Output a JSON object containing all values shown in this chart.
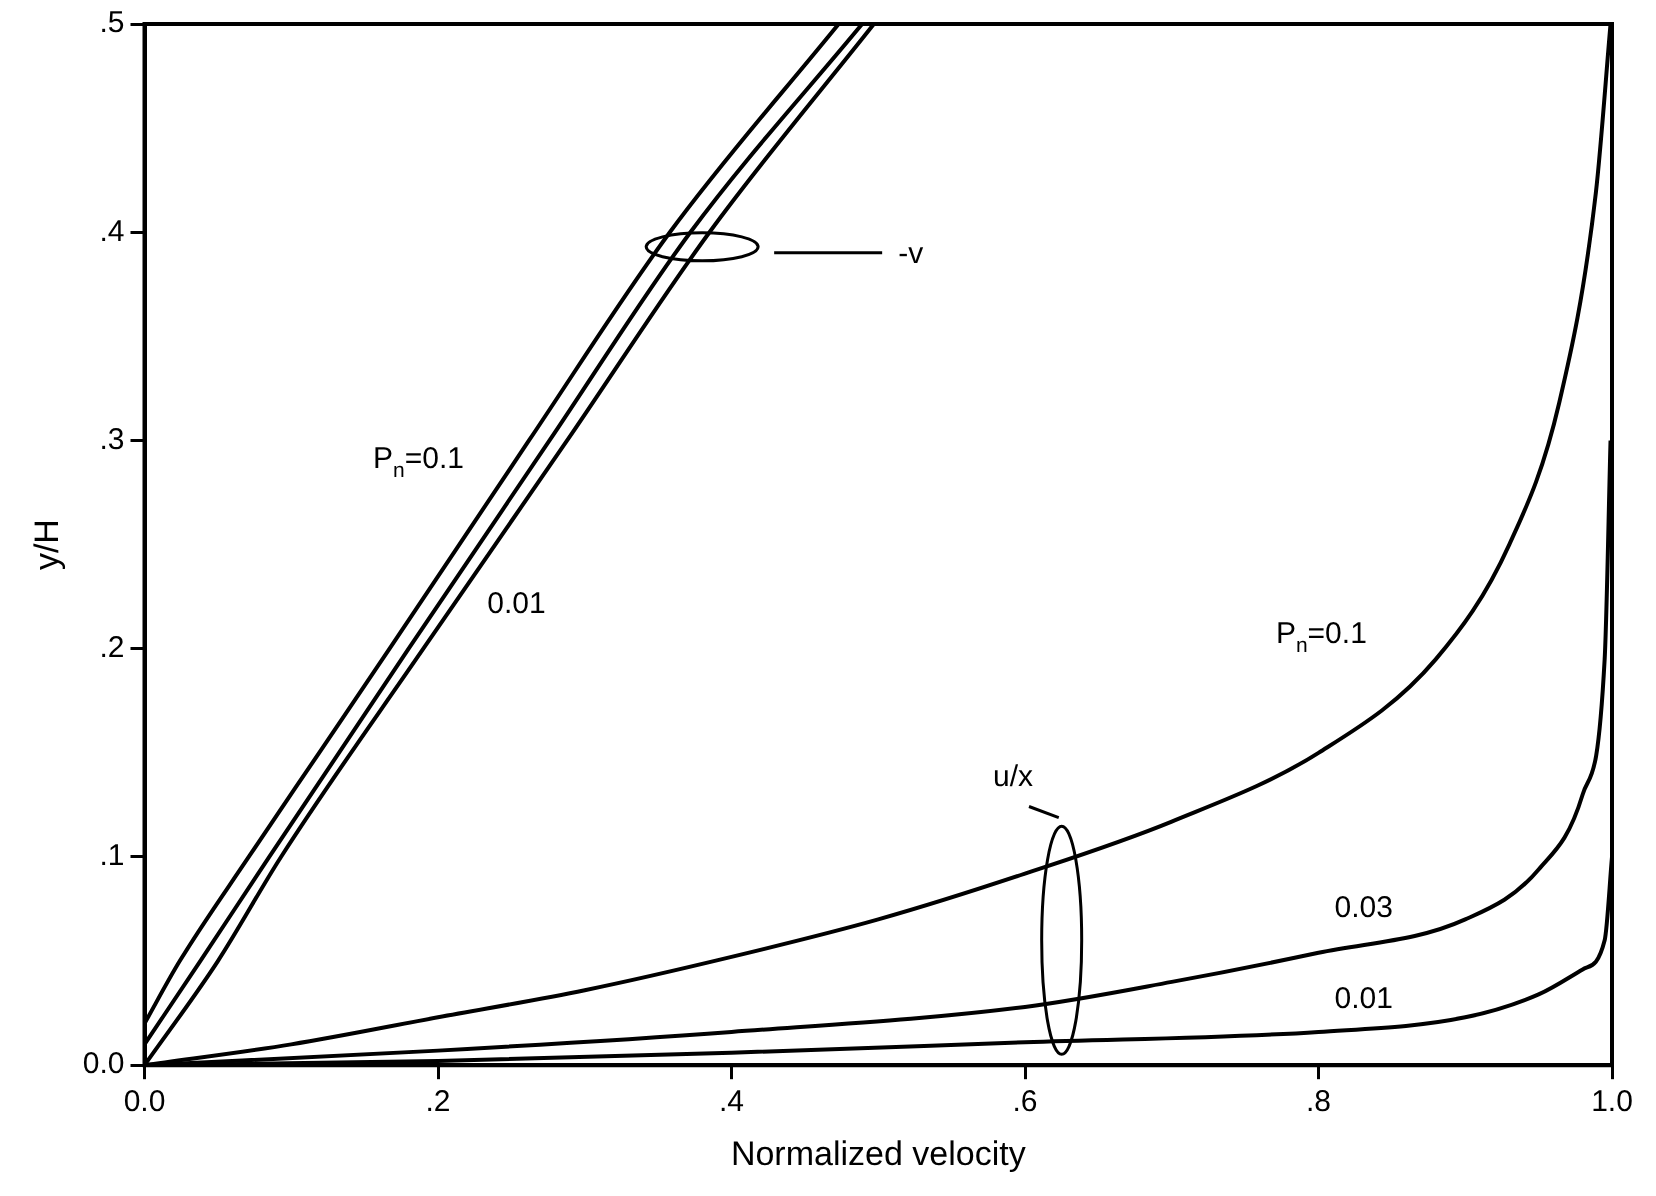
{
  "chart_data": {
    "type": "line",
    "xlabel": "Normalized velocity",
    "ylabel": "y/H",
    "xlim": [
      0,
      1
    ],
    "ylim": [
      0,
      0.5
    ],
    "xticks": [
      {
        "value": 0,
        "label": "0.0"
      },
      {
        "value": 0.2,
        "label": ".2"
      },
      {
        "value": 0.4,
        "label": ".4"
      },
      {
        "value": 0.6,
        "label": ".6"
      },
      {
        "value": 0.8,
        "label": ".8"
      },
      {
        "value": 1,
        "label": "1.0"
      }
    ],
    "yticks": [
      {
        "value": 0,
        "label": "0.0"
      },
      {
        "value": 0.1,
        "label": ".1"
      },
      {
        "value": 0.2,
        "label": ".2"
      },
      {
        "value": 0.3,
        "label": ".3"
      },
      {
        "value": 0.4,
        "label": ".4"
      },
      {
        "value": 0.5,
        "label": ".5"
      }
    ],
    "grid": false,
    "legend": false,
    "marker": "none",
    "line_style": "solid",
    "series": [
      {
        "name": "P$_{n}$=0.1",
        "color": "#000000",
        "x": [
          0,
          0.024,
          0.071,
          0.119,
          0.167,
          0.262,
          0.358,
          0.473
        ],
        "values": [
          0.02,
          0.05,
          0.1,
          0.15,
          0.2,
          0.3,
          0.4,
          0.5
        ]
      },
      {
        "color": "#000000",
        "x": [
          0,
          0.038,
          0.085,
          0.18,
          0.276,
          0.372,
          0.489
        ],
        "values": [
          0.01,
          0.05,
          0.1,
          0.2,
          0.3,
          0.4,
          0.5
        ]
      },
      {
        "name": "0.01",
        "color": "#000000",
        "x": [
          0,
          0.05,
          0.093,
          0.19,
          0.288,
          0.385,
          0.497
        ],
        "values": [
          0,
          0.05,
          0.1,
          0.2,
          0.3,
          0.4,
          0.5
        ]
      },
      {
        "name": "P$_{n}$=0.1",
        "color": "#000000",
        "x": [
          0,
          0.1,
          0.2,
          0.3,
          0.4,
          0.5,
          0.6,
          0.7,
          0.8,
          0.88,
          0.93,
          0.964,
          0.989,
          0.999
        ],
        "values": [
          0,
          0.01,
          0.023,
          0.036,
          0.052,
          0.07,
          0.092,
          0.117,
          0.15,
          0.195,
          0.25,
          0.318,
          0.419,
          0.5
        ]
      },
      {
        "name": "0.03",
        "color": "#000000",
        "x": [
          0,
          0.2,
          0.4,
          0.6,
          0.7,
          0.8,
          0.9,
          0.95,
          0.98,
          0.995,
          0.999
        ],
        "values": [
          0,
          0.007,
          0.016,
          0.028,
          0.04,
          0.054,
          0.07,
          0.094,
          0.13,
          0.195,
          0.3
        ]
      },
      {
        "name": "0.01",
        "color": "#000000",
        "x": [
          0,
          0.2,
          0.4,
          0.6,
          0.8,
          0.9,
          0.95,
          0.98,
          0.995,
          1
        ],
        "values": [
          0,
          0.002,
          0.006,
          0.011,
          0.016,
          0.023,
          0.034,
          0.046,
          0.06,
          0.1
        ]
      }
    ],
    "annotations": [
      "-v",
      "u/x"
    ]
  }
}
